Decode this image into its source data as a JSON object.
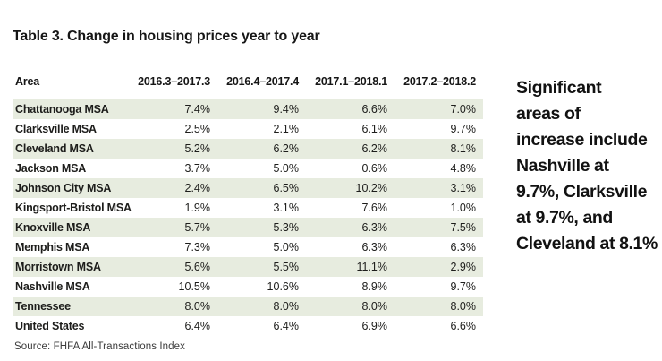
{
  "title": "Table 3. Change in housing prices year to year",
  "table": {
    "columns": [
      "Area",
      "2016.3–2017.3",
      "2016.4–2017.4",
      "2017.1–2018.1",
      "2017.2–2018.2"
    ],
    "rows": [
      {
        "area": "Chattanooga MSA",
        "values": [
          "7.4%",
          "9.4%",
          "6.6%",
          "7.0%"
        ]
      },
      {
        "area": "Clarksville MSA",
        "values": [
          "2.5%",
          "2.1%",
          "6.1%",
          "9.7%"
        ]
      },
      {
        "area": "Cleveland MSA",
        "values": [
          "5.2%",
          "6.2%",
          "6.2%",
          "8.1%"
        ]
      },
      {
        "area": "Jackson MSA",
        "values": [
          "3.7%",
          "5.0%",
          "0.6%",
          "4.8%"
        ]
      },
      {
        "area": "Johnson City MSA",
        "values": [
          "2.4%",
          "6.5%",
          "10.2%",
          "3.1%"
        ]
      },
      {
        "area": "Kingsport-Bristol MSA",
        "values": [
          "1.9%",
          "3.1%",
          "7.6%",
          "1.0%"
        ]
      },
      {
        "area": "Knoxville MSA",
        "values": [
          "5.7%",
          "5.3%",
          "6.3%",
          "7.5%"
        ]
      },
      {
        "area": "Memphis MSA",
        "values": [
          "7.3%",
          "5.0%",
          "6.3%",
          "6.3%"
        ]
      },
      {
        "area": "Morristown MSA",
        "values": [
          "5.6%",
          "5.5%",
          "11.1%",
          "2.9%"
        ]
      },
      {
        "area": "Nashville MSA",
        "values": [
          "10.5%",
          "10.6%",
          "8.9%",
          "9.7%"
        ]
      },
      {
        "area": "Tennessee",
        "values": [
          "8.0%",
          "8.0%",
          "8.0%",
          "8.0%"
        ]
      },
      {
        "area": "United States",
        "values": [
          "6.4%",
          "6.4%",
          "6.9%",
          "6.6%"
        ]
      }
    ]
  },
  "source": "Source: FHFA All-Transactions Index",
  "callout": {
    "lines": [
      "Significant",
      "areas of",
      "increase include",
      "Nashville at",
      "9.7%, Clarksville",
      "at 9.7%, and",
      "Cleveland at 8.1%"
    ]
  },
  "colors": {
    "row_shade": "#e7ecdf",
    "text": "#1d1d1b"
  }
}
